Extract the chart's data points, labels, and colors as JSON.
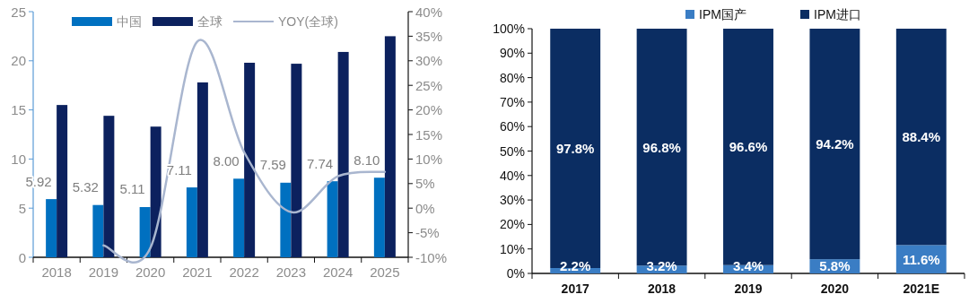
{
  "chart_data": [
    {
      "type": "bar",
      "categories": [
        "2018",
        "2019",
        "2020",
        "2021",
        "2022",
        "2023",
        "2024",
        "2025"
      ],
      "series": [
        {
          "name": "中国",
          "color": "#0070c0",
          "values": [
            5.92,
            5.32,
            5.11,
            7.11,
            8.0,
            7.59,
            7.74,
            8.1
          ],
          "value_labels": [
            "5.92",
            "5.32",
            "5.11",
            "7.11",
            "8.00",
            "7.59",
            "7.74",
            "8.10"
          ]
        },
        {
          "name": "全球",
          "color": "#0c215e",
          "values": [
            15.5,
            14.4,
            13.3,
            17.8,
            19.8,
            19.7,
            20.9,
            22.5
          ]
        },
        {
          "name": "YOY(全球)",
          "type": "line",
          "axis": "y2",
          "color": "#a9b6cf",
          "values": [
            null,
            -7.6,
            -8.1,
            33.9,
            11.4,
            -0.8,
            6.5,
            7.4
          ]
        }
      ],
      "ylim": [
        0,
        25
      ],
      "yticks": [
        0,
        5,
        10,
        15,
        20,
        25
      ],
      "y2lim": [
        -10,
        40
      ],
      "y2ticks": [
        {
          "value": -10,
          "label": "-10%"
        },
        {
          "value": -5,
          "label": "-5%"
        },
        {
          "value": 0,
          "label": "0%"
        },
        {
          "value": 5,
          "label": "5%"
        },
        {
          "value": 10,
          "label": "10%"
        },
        {
          "value": 15,
          "label": "15%"
        },
        {
          "value": 20,
          "label": "20%"
        },
        {
          "value": 25,
          "label": "25%"
        },
        {
          "value": 30,
          "label": "30%"
        },
        {
          "value": 35,
          "label": "35%"
        },
        {
          "value": 40,
          "label": "40%"
        }
      ],
      "legend": "top"
    },
    {
      "type": "bar",
      "stacked": true,
      "categories": [
        "2017",
        "2018",
        "2019",
        "2020",
        "2021E"
      ],
      "series": [
        {
          "name": "IPM国产",
          "color": "#3a7dc4",
          "values": [
            2.2,
            3.2,
            3.4,
            5.8,
            11.6
          ],
          "value_labels": [
            "2.2%",
            "3.2%",
            "3.4%",
            "5.8%",
            "11.6%"
          ]
        },
        {
          "name": "IPM进口",
          "color": "#0b2d62",
          "values": [
            97.8,
            96.8,
            96.6,
            94.2,
            88.4
          ],
          "value_labels": [
            "97.8%",
            "96.8%",
            "96.6%",
            "94.2%",
            "88.4%"
          ]
        }
      ],
      "ylim": [
        0,
        100
      ],
      "yticks": [
        {
          "value": 0,
          "label": "0%"
        },
        {
          "value": 10,
          "label": "10%"
        },
        {
          "value": 20,
          "label": "20%"
        },
        {
          "value": 30,
          "label": "30%"
        },
        {
          "value": 40,
          "label": "40%"
        },
        {
          "value": 50,
          "label": "50%"
        },
        {
          "value": 60,
          "label": "60%"
        },
        {
          "value": 70,
          "label": "70%"
        },
        {
          "value": 80,
          "label": "80%"
        },
        {
          "value": 90,
          "label": "90%"
        },
        {
          "value": 100,
          "label": "100%"
        }
      ],
      "legend": "top"
    }
  ]
}
